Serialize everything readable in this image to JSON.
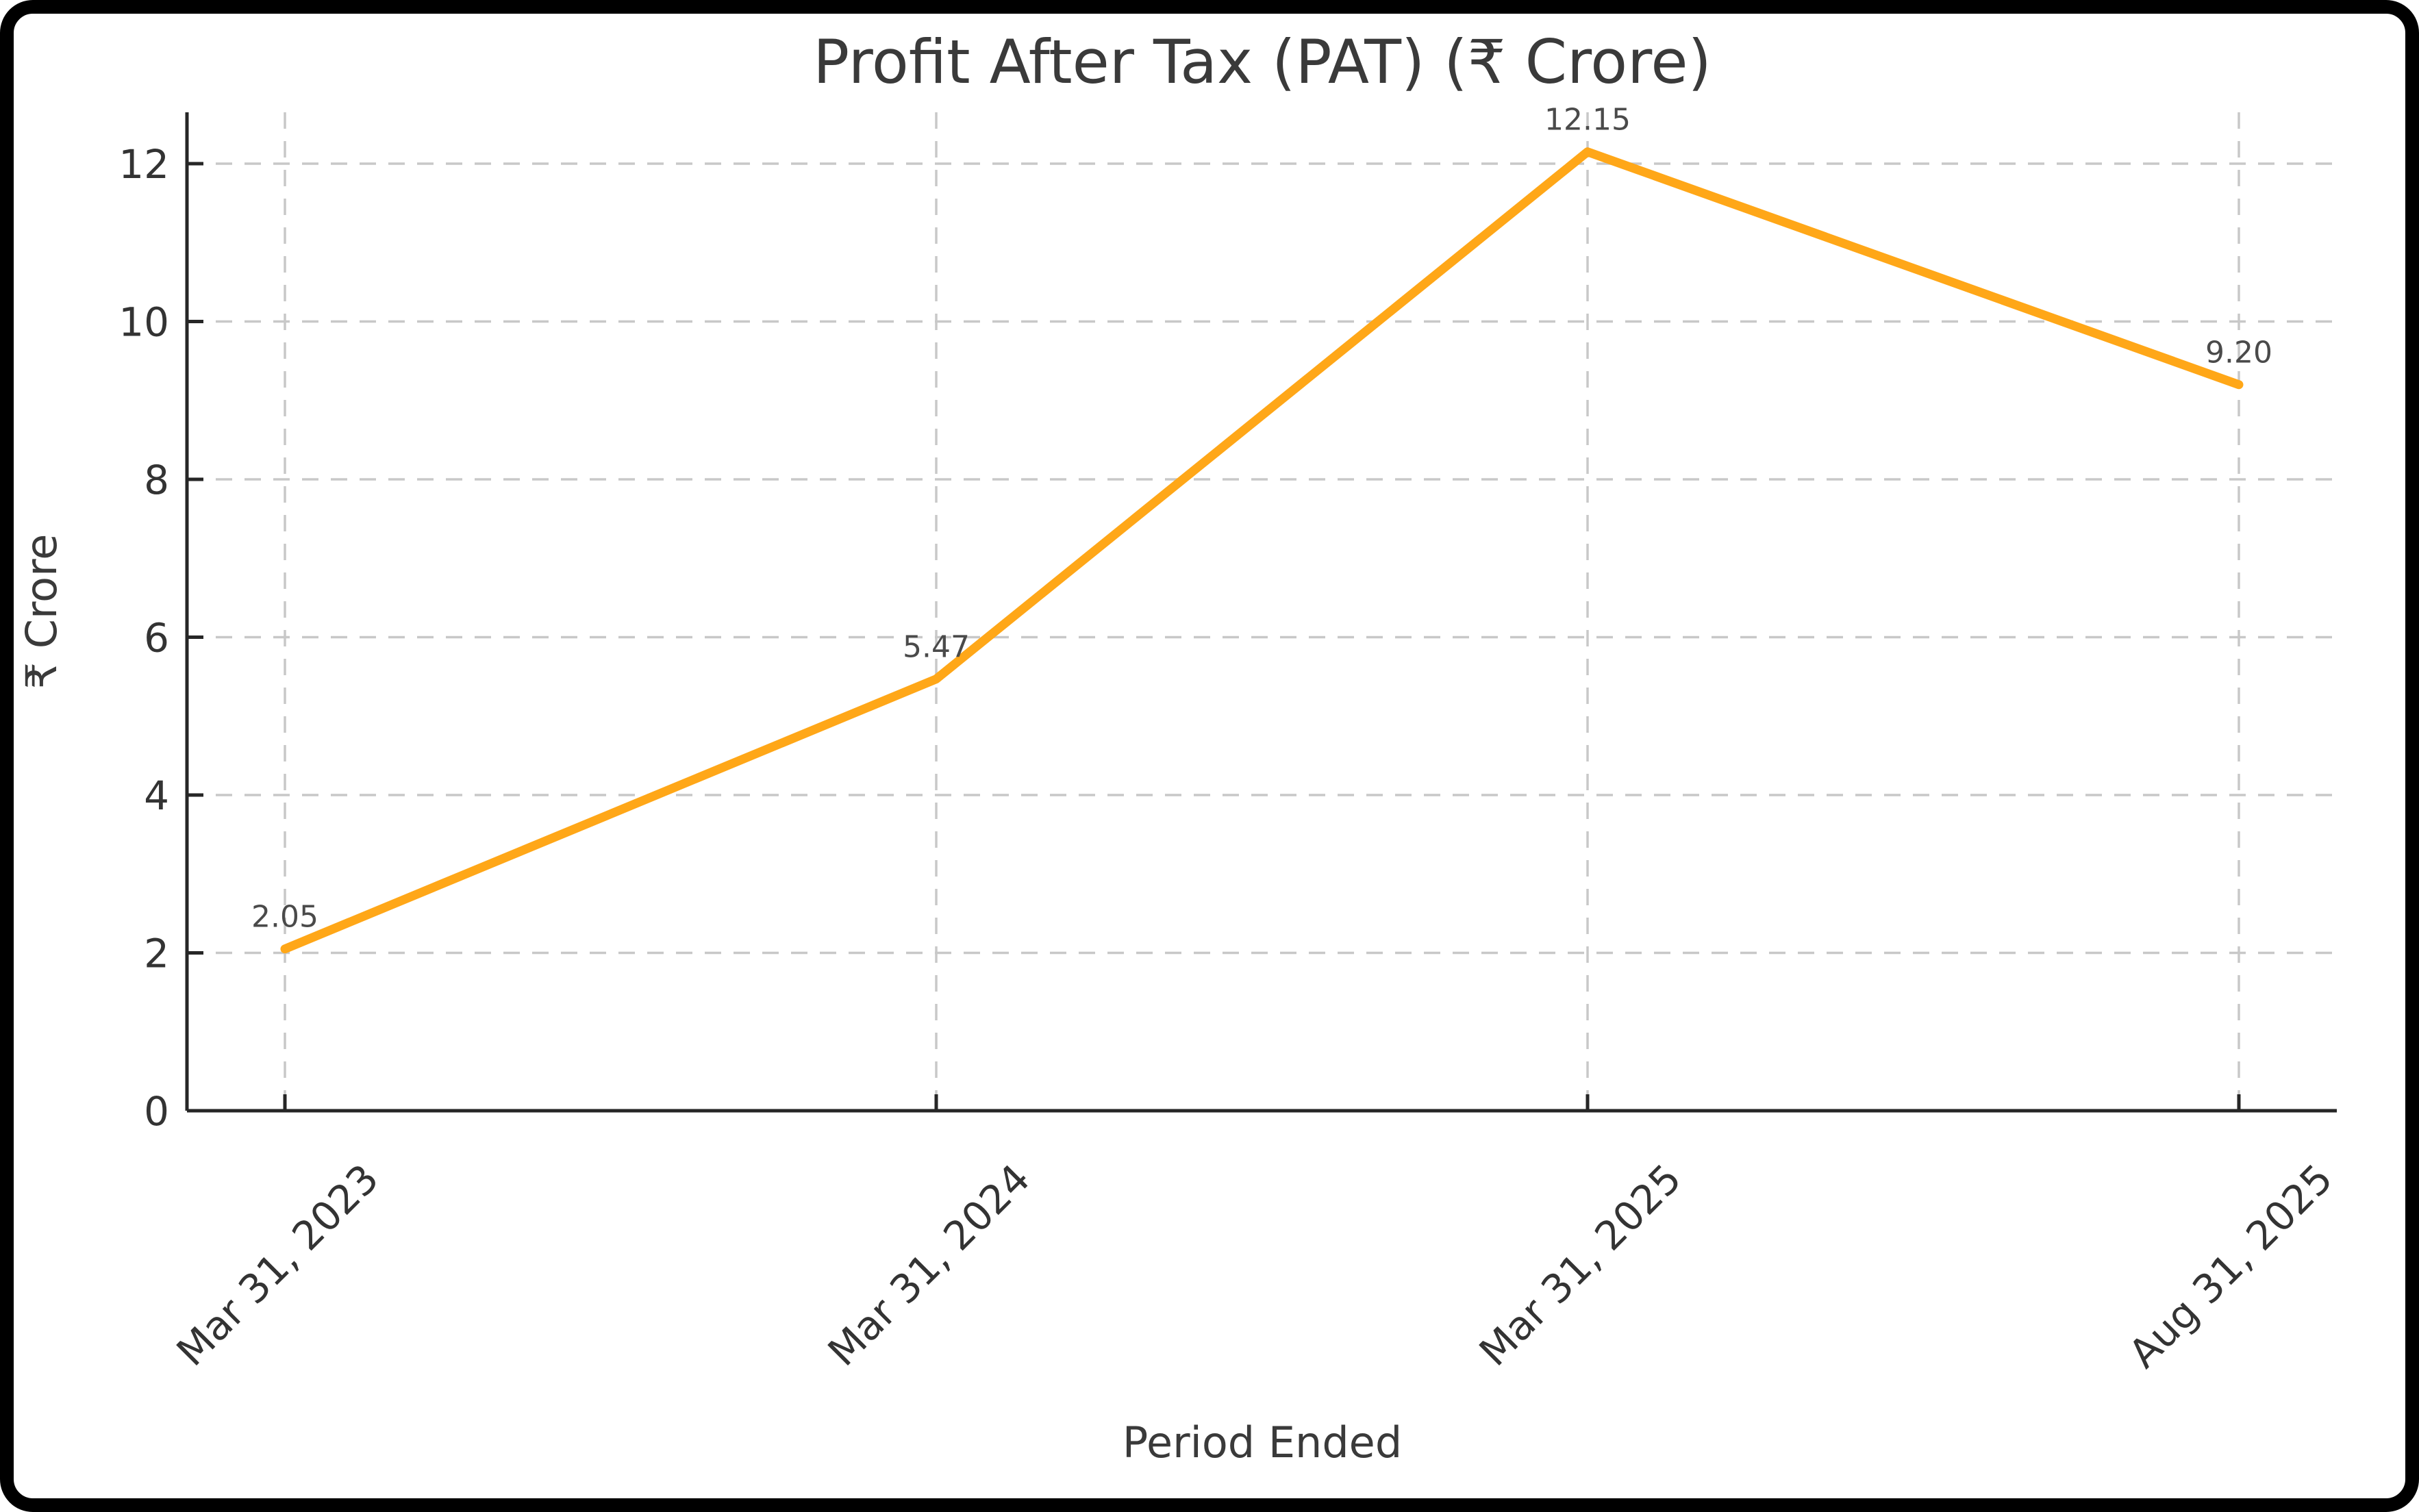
{
  "chart_data": {
    "type": "line",
    "title": "Profit After Tax (PAT) (₹ Crore)",
    "xlabel": "Period Ended",
    "ylabel": "₹ Crore",
    "categories": [
      "Mar 31, 2023",
      "Mar 31, 2024",
      "Mar 31, 2025",
      "Aug 31, 2025"
    ],
    "series": [
      {
        "name": "Profit After Tax",
        "values": [
          2.05,
          5.47,
          12.15,
          9.2
        ]
      }
    ],
    "point_labels": [
      "2.05",
      "5.47",
      "12.15",
      "9.20"
    ],
    "yticks": [
      0,
      2,
      4,
      6,
      8,
      10,
      12
    ],
    "ylim": [
      0,
      12.65
    ],
    "grid": true,
    "grid_style": "dashed",
    "legend": false,
    "x_tick_rotation_deg": 45,
    "colors": {
      "line": "#FFA718",
      "grid": "#C8C8C8",
      "spine": "#262626",
      "tick": "#262626",
      "title_text": "#3A3A3A",
      "axis_text": "#3A3A3A",
      "tick_text": "#333333",
      "point_label_text": "#4A4A4A",
      "background": "#FFFFFF",
      "frame": "#000000"
    }
  }
}
